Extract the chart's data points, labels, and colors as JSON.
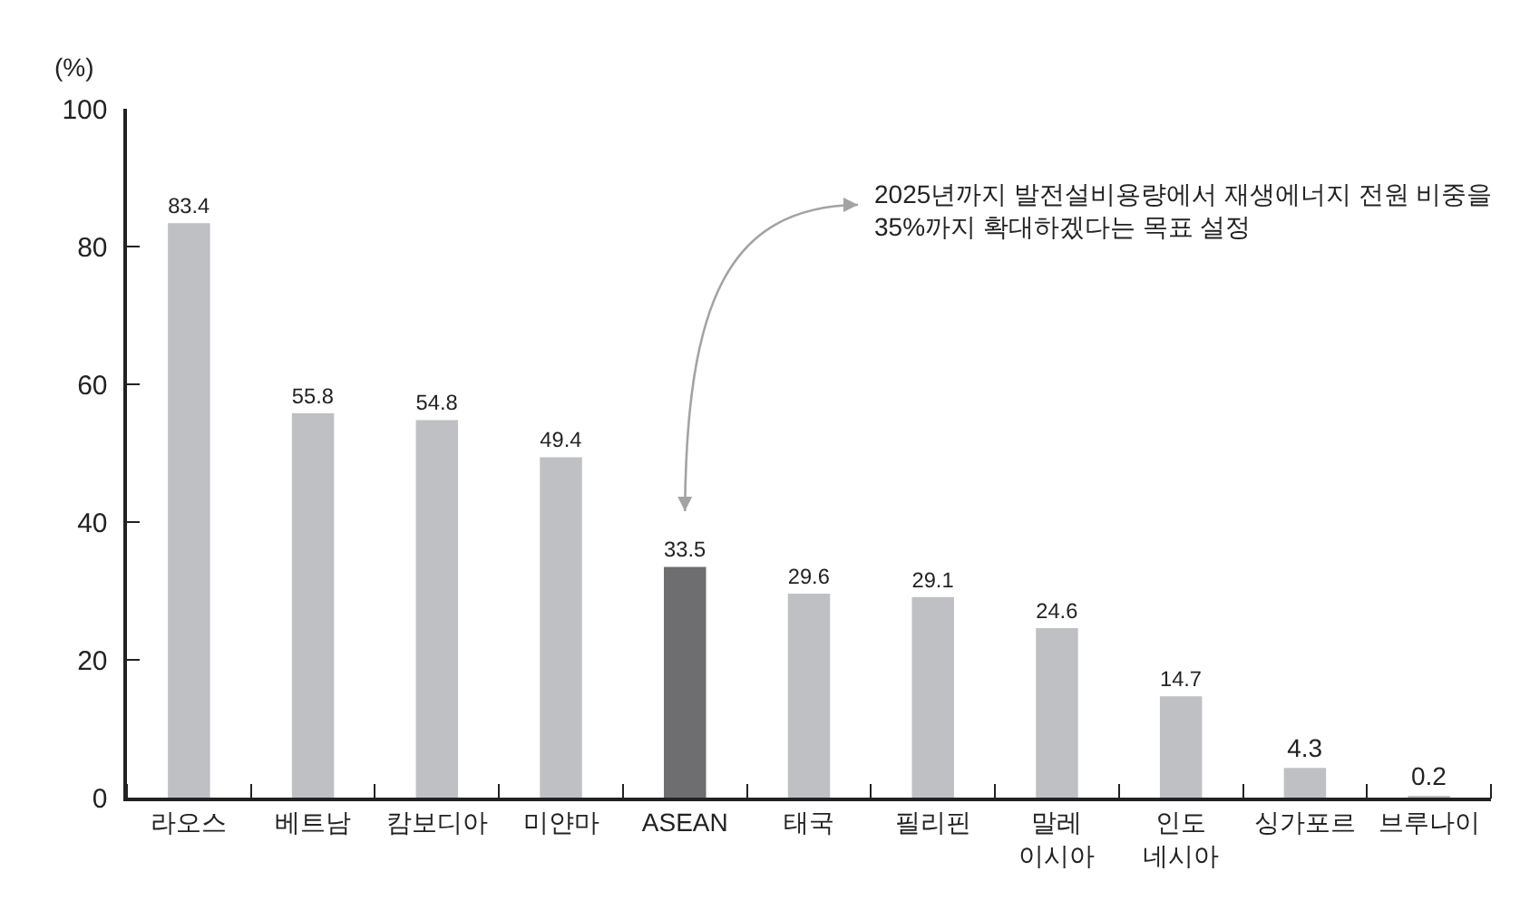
{
  "chart_data": {
    "type": "bar",
    "ylabel": "(%)",
    "categories": [
      "라오스",
      "베트남",
      "캄보디아",
      "미얀마",
      "ASEAN",
      "태국",
      "필리핀",
      "말레\n이시아",
      "인도\n네시아",
      "싱가포르",
      "브루나이"
    ],
    "values": [
      83.4,
      55.8,
      54.8,
      49.4,
      33.5,
      29.6,
      29.1,
      24.6,
      14.7,
      4.3,
      0.2
    ],
    "colors": [
      "#bfc0c4",
      "#bfc0c4",
      "#bfc0c4",
      "#bfc0c4",
      "#6e6e70",
      "#bfc0c4",
      "#bfc0c4",
      "#bfc0c4",
      "#bfc0c4",
      "#bfc0c4",
      "#bfc0c4"
    ],
    "ylim": [
      0,
      100
    ],
    "yticks": [
      0,
      20,
      40,
      60,
      80,
      100
    ],
    "data_labels": true,
    "annotations": [
      "2025년까지 발전설비용량에서 재생에너지 전원 비중을\n35%까지 확대하겠다는 목표 설정"
    ]
  }
}
